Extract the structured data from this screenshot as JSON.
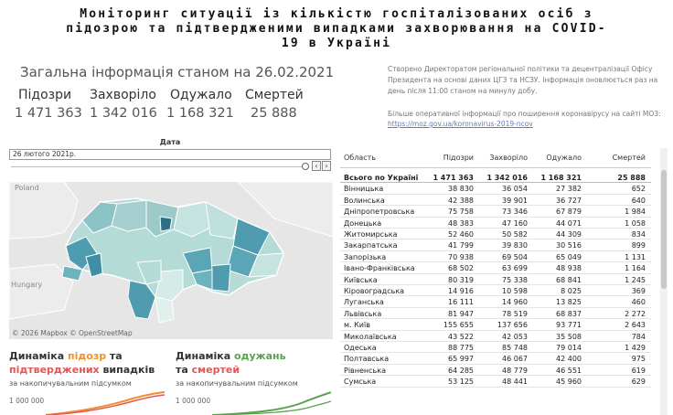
{
  "title": {
    "line1": "Моніторинг ситуації із кількістю госпіталізованих осіб з",
    "line2": "підозрою та підтвердженими випадками захворювання на COVID-",
    "line3": "19 в Україні"
  },
  "summary": {
    "as_of": "Загальна інформація станом на 26.02.2021",
    "stats": [
      {
        "label": "Підозри",
        "value": "1 471 363"
      },
      {
        "label": "Захворіло",
        "value": "1 342 016"
      },
      {
        "label": "Одужало",
        "value": "1 168 321"
      },
      {
        "label": "Смертей",
        "value": "25 888"
      }
    ]
  },
  "info": {
    "text": "Створено Директоратом регіональної політики та децентралізації Офісу Президента на основі даних ЦГЗ та НСЗУ. Інформація оновлюється раз на день після 11:00 станом на минулу добу.",
    "more_text": "Більше оперативної інформації про поширення коронавірусу на сайті МОЗ:",
    "link": "https://moz.gov.ua/koronavirus-2019-ncov"
  },
  "date_filter": {
    "label": "Дата",
    "value": "26 лютого 2021р.",
    "prev": "‹",
    "next": "›"
  },
  "map": {
    "labels": {
      "poland": "Poland",
      "hungary": "Hungary"
    },
    "credit": "© 2026 Mapbox © OpenStreetMap"
  },
  "chart1": {
    "title_a": "Динаміка ",
    "title_b": "підозр",
    "title_c": " та",
    "title_d": "підтверджених",
    "title_e": " випадків",
    "subtitle": "за накопичувальним підсумком",
    "tick": "1 000 000"
  },
  "chart2": {
    "title_a": "Динаміка ",
    "title_b": "одужань",
    "title_c": "та ",
    "title_d": "смертей",
    "subtitle": "за накопичувальним підсумком",
    "tick": "1 000 000"
  },
  "colors": {
    "orange": "#f28e2b",
    "green": "#59a14f",
    "pink": "#e15759",
    "map_dark": "#4f9cb0",
    "map_light": "#b5dbd7"
  },
  "table": {
    "headers": [
      "Область",
      "Підозри",
      "Захворіло",
      "Одужало",
      "Смертей"
    ],
    "total": [
      "Всього по Україні",
      "1 471 363",
      "1 342 016",
      "1 168 321",
      "25 888"
    ],
    "rows": [
      [
        "Вінницька",
        "38 830",
        "36 054",
        "27 382",
        "652"
      ],
      [
        "Волинська",
        "42 388",
        "39 901",
        "36 727",
        "640"
      ],
      [
        "Дніпропетровська",
        "75 758",
        "73 346",
        "67 879",
        "1 984"
      ],
      [
        "Донецька",
        "48 383",
        "47 160",
        "44 071",
        "1 058"
      ],
      [
        "Житомирська",
        "52 460",
        "50 582",
        "44 309",
        "834"
      ],
      [
        "Закарпатська",
        "41 799",
        "39 830",
        "30 516",
        "899"
      ],
      [
        "Запорізька",
        "70 938",
        "69 504",
        "65 049",
        "1 131"
      ],
      [
        "Івано-Франківська",
        "68 502",
        "63 699",
        "48 938",
        "1 164"
      ],
      [
        "Київська",
        "80 319",
        "75 338",
        "68 841",
        "1 245"
      ],
      [
        "Кіровоградська",
        "14 916",
        "10 598",
        "8 025",
        "369"
      ],
      [
        "Луганська",
        "16 111",
        "14 960",
        "13 825",
        "460"
      ],
      [
        "Львівська",
        "81 947",
        "78 519",
        "68 837",
        "2 272"
      ],
      [
        "м. Київ",
        "155 655",
        "137 656",
        "93 771",
        "2 643"
      ],
      [
        "Миколаївська",
        "43 522",
        "42 053",
        "35 508",
        "784"
      ],
      [
        "Одеська",
        "88 775",
        "85 748",
        "79 014",
        "1 429"
      ],
      [
        "Полтавська",
        "65 997",
        "46 067",
        "42 400",
        "975"
      ],
      [
        "Рівненська",
        "64 285",
        "48 779",
        "46 551",
        "619"
      ],
      [
        "Сумська",
        "53 125",
        "48 441",
        "45 960",
        "629"
      ]
    ]
  }
}
